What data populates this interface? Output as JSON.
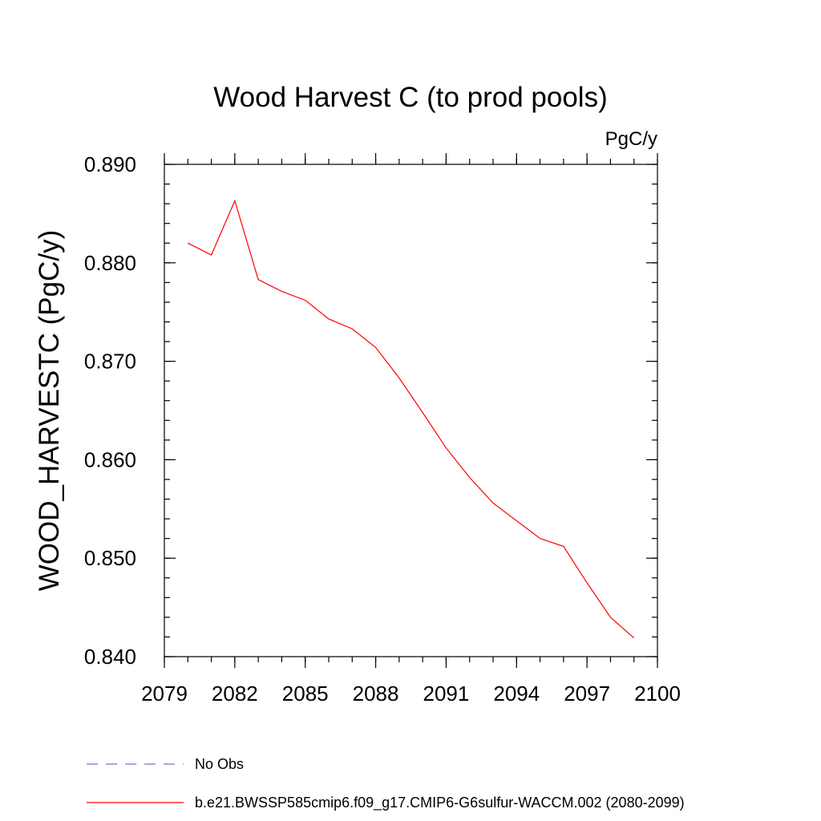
{
  "chart_data": {
    "type": "line",
    "title": "Wood Harvest C (to prod pools)",
    "units_label": "PgC/y",
    "xlabel": "",
    "ylabel": "WOOD_HARVESTC  (PgC/y)",
    "xlim": [
      2079,
      2100
    ],
    "ylim": [
      0.84,
      0.89
    ],
    "xticks": [
      2079,
      2082,
      2085,
      2088,
      2091,
      2094,
      2097,
      2100
    ],
    "xtick_labels": [
      "2079",
      "2082",
      "2085",
      "2088",
      "2091",
      "2094",
      "2097",
      "2100"
    ],
    "yticks": [
      0.84,
      0.85,
      0.86,
      0.87,
      0.88,
      0.89
    ],
    "ytick_labels": [
      "0.840",
      "0.850",
      "0.860",
      "0.870",
      "0.880",
      "0.890"
    ],
    "x_minor_step": 1,
    "y_minor_step": 0.002,
    "grid": false,
    "series": [
      {
        "name": "b.e21.BWSSP585cmip6.f09_g17.CMIP6-G6sulfur-WACCM.002 (2080-2099)",
        "color": "#ff0000",
        "style": "solid",
        "x": [
          2080,
          2081,
          2082,
          2083,
          2084,
          2085,
          2086,
          2087,
          2088,
          2089,
          2090,
          2091,
          2092,
          2093,
          2094,
          2095,
          2096,
          2097,
          2098,
          2099
        ],
        "y": [
          0.882,
          0.8808,
          0.8863,
          0.8783,
          0.8771,
          0.8762,
          0.8743,
          0.8733,
          0.8714,
          0.8683,
          0.8648,
          0.8612,
          0.8582,
          0.8556,
          0.8538,
          0.852,
          0.8512,
          0.8475,
          0.844,
          0.8419
        ]
      }
    ],
    "legend": {
      "placement": "bottom-left",
      "entries": [
        {
          "label": "No Obs",
          "color": "#7d6fc4",
          "style": "dashed"
        },
        {
          "label": "b.e21.BWSSP585cmip6.f09_g17.CMIP6-G6sulfur-WACCM.002 (2080-2099)",
          "color": "#ff0000",
          "style": "solid"
        }
      ]
    }
  }
}
